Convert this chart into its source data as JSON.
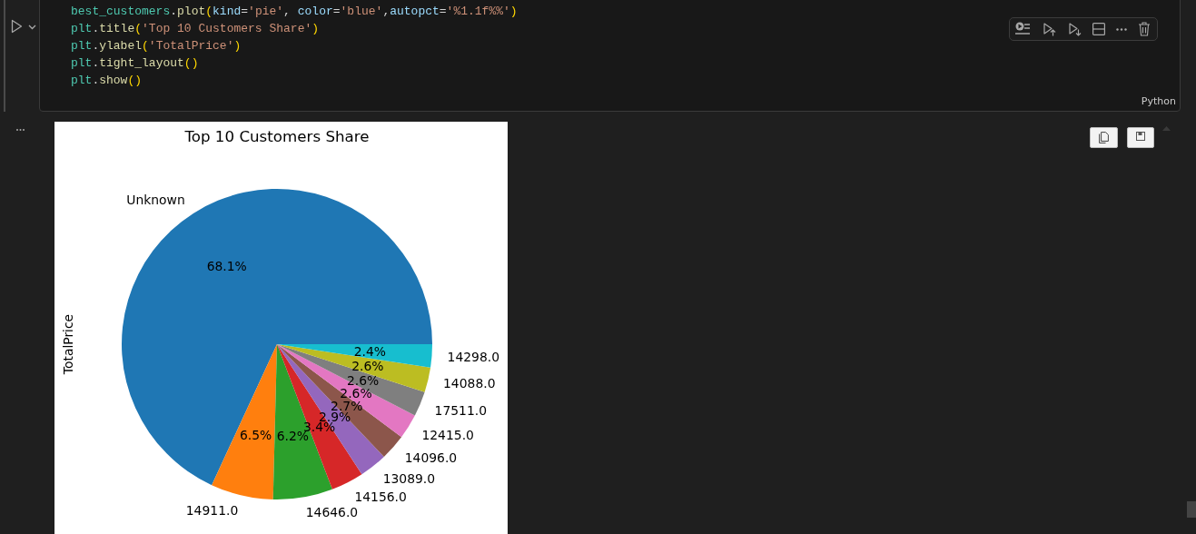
{
  "chart_data": {
    "type": "pie",
    "title": "Top 10 Customers Share",
    "ylabel": "TotalPrice",
    "categories": [
      "Unknown",
      "14911.0",
      "14646.0",
      "14156.0",
      "13089.0",
      "14096.0",
      "12415.0",
      "17511.0",
      "14088.0",
      "14298.0"
    ],
    "values": [
      68.1,
      6.5,
      6.2,
      3.4,
      2.9,
      2.7,
      2.6,
      2.6,
      2.6,
      2.4
    ],
    "value_labels": [
      "68.1%",
      "6.5%",
      "6.2%",
      "3.4%",
      "2.9%",
      "2.7%",
      "2.6%",
      "2.6%",
      "2.6%",
      "2.4%"
    ],
    "colors": [
      "#1f77b4",
      "#ff7f0e",
      "#2ca02c",
      "#d62728",
      "#9467bd",
      "#8c564b",
      "#e377c2",
      "#7f7f7f",
      "#bcbd22",
      "#17becf"
    ],
    "annotations": [
      "best_customers.plot(kind='pie', color='blue',autopct='%1.1f%%')",
      "plt.title('Top 10 Customers Share')",
      "plt.ylabel('TotalPrice')",
      "plt.tight_layout()",
      "plt.show()",
      "Python"
    ]
  }
}
